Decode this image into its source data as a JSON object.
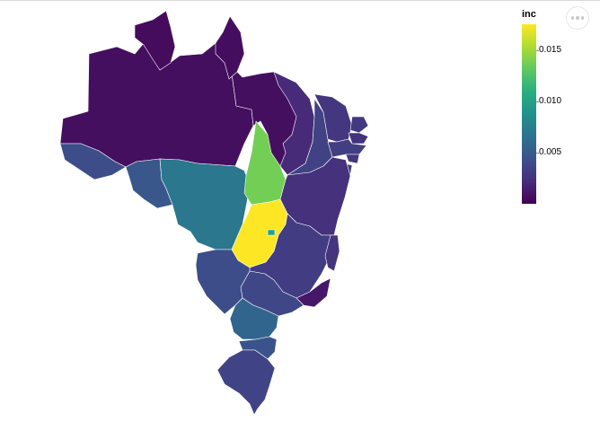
{
  "chart_data": {
    "type": "choropleth",
    "legend_title": "inc",
    "legend_ticks": [
      "0.015",
      "0.010",
      "0.005"
    ],
    "color_range": [
      0.0001,
      0.0176
    ],
    "color_scheme": "viridis",
    "legend_position": "top-right",
    "regions": [
      {
        "name": "Amazonas",
        "value": 0.0008
      },
      {
        "name": "Roraima",
        "value": 0.0006
      },
      {
        "name": "Pará",
        "value": 0.0008
      },
      {
        "name": "Amapá",
        "value": 0.0007
      },
      {
        "name": "Acre",
        "value": 0.0042
      },
      {
        "name": "Rondônia",
        "value": 0.0048
      },
      {
        "name": "Mato Grosso",
        "value": 0.007
      },
      {
        "name": "Tocantins",
        "value": 0.0138
      },
      {
        "name": "Maranhão",
        "value": 0.0022
      },
      {
        "name": "Piauí",
        "value": 0.0035
      },
      {
        "name": "Ceará",
        "value": 0.0028
      },
      {
        "name": "Rio Grande do Norte",
        "value": 0.003
      },
      {
        "name": "Paraíba",
        "value": 0.0026
      },
      {
        "name": "Pernambuco",
        "value": 0.0033
      },
      {
        "name": "Alagoas",
        "value": 0.0029
      },
      {
        "name": "Sergipe",
        "value": 0.0031
      },
      {
        "name": "Bahia",
        "value": 0.0025
      },
      {
        "name": "Goiás",
        "value": 0.0176
      },
      {
        "name": "Distrito Federal",
        "value": 0.01
      },
      {
        "name": "Minas Gerais",
        "value": 0.0032
      },
      {
        "name": "Espírito Santo",
        "value": 0.0027
      },
      {
        "name": "Rio de Janeiro",
        "value": 0.0012
      },
      {
        "name": "São Paulo",
        "value": 0.0038
      },
      {
        "name": "Mato Grosso do Sul",
        "value": 0.0042
      },
      {
        "name": "Paraná",
        "value": 0.0058
      },
      {
        "name": "Santa Catarina",
        "value": 0.0046
      },
      {
        "name": "Rio Grande do Sul",
        "value": 0.0036
      }
    ]
  }
}
